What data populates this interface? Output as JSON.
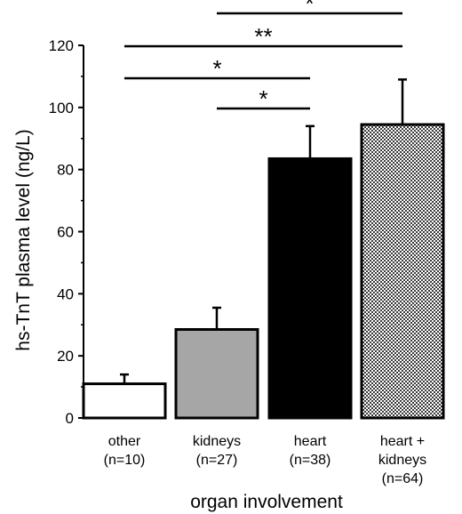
{
  "chart_data": {
    "type": "bar",
    "title": "",
    "xlabel": "organ involvement",
    "ylabel": "hs-TnT plasma level (ng/L)",
    "ylim": [
      0,
      120
    ],
    "yticks": [
      0,
      20,
      40,
      60,
      80,
      100,
      120
    ],
    "grid": false,
    "categories": [
      {
        "lines": [
          "other",
          "(n=10)"
        ]
      },
      {
        "lines": [
          "kidneys",
          "(n=27)"
        ]
      },
      {
        "lines": [
          "heart",
          "(n=38)"
        ]
      },
      {
        "lines": [
          "heart +",
          "kidneys",
          "(n=64)"
        ]
      }
    ],
    "values": [
      11,
      28.5,
      83.5,
      94.5
    ],
    "error": [
      3,
      7,
      10.5,
      14.5
    ],
    "fills": [
      "#ffffff",
      "#a6a6a6",
      "#000000",
      "checker"
    ],
    "significance": [
      {
        "from": 1,
        "to": 3,
        "label": "*"
      },
      {
        "from": 0,
        "to": 3,
        "label": "**"
      },
      {
        "from": 0,
        "to": 2,
        "label": "*"
      },
      {
        "from": 1,
        "to": 2,
        "label": "*"
      }
    ]
  }
}
